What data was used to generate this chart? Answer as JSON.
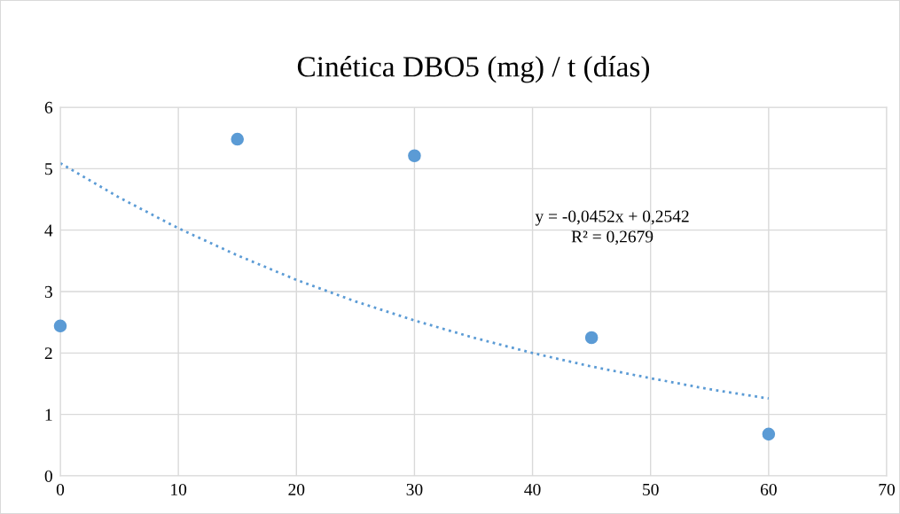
{
  "chart_data": {
    "type": "scatter",
    "title": "Cinética DBO5 (mg) / t (días)",
    "x": [
      0,
      15,
      30,
      45,
      60
    ],
    "series": [
      {
        "color": "#5b9bd5",
        "marker": "circle",
        "values": [
          2.44,
          5.48,
          5.21,
          2.25,
          0.68
        ]
      },
      {
        "type": "line",
        "color": "#5b9bd5",
        "line_style": "dotted",
        "x": [
          0,
          5,
          10,
          15,
          20,
          25,
          30,
          35,
          40,
          45,
          50,
          55,
          60
        ],
        "values": [
          5.09,
          4.53,
          4.03,
          3.59,
          3.19,
          2.84,
          2.53,
          2.25,
          2.0,
          1.78,
          1.59,
          1.41,
          1.26
        ]
      }
    ],
    "annotations": [
      "y = -0,0452x + 0,2542",
      "R² = 0,2679"
    ],
    "xlim": [
      0,
      70
    ],
    "xticks": [
      0,
      10,
      20,
      30,
      40,
      50,
      60,
      70
    ],
    "ylim": [
      0,
      6
    ],
    "yticks": [
      0,
      1,
      2,
      3,
      4,
      5,
      6
    ],
    "grid": true,
    "legend": false
  }
}
